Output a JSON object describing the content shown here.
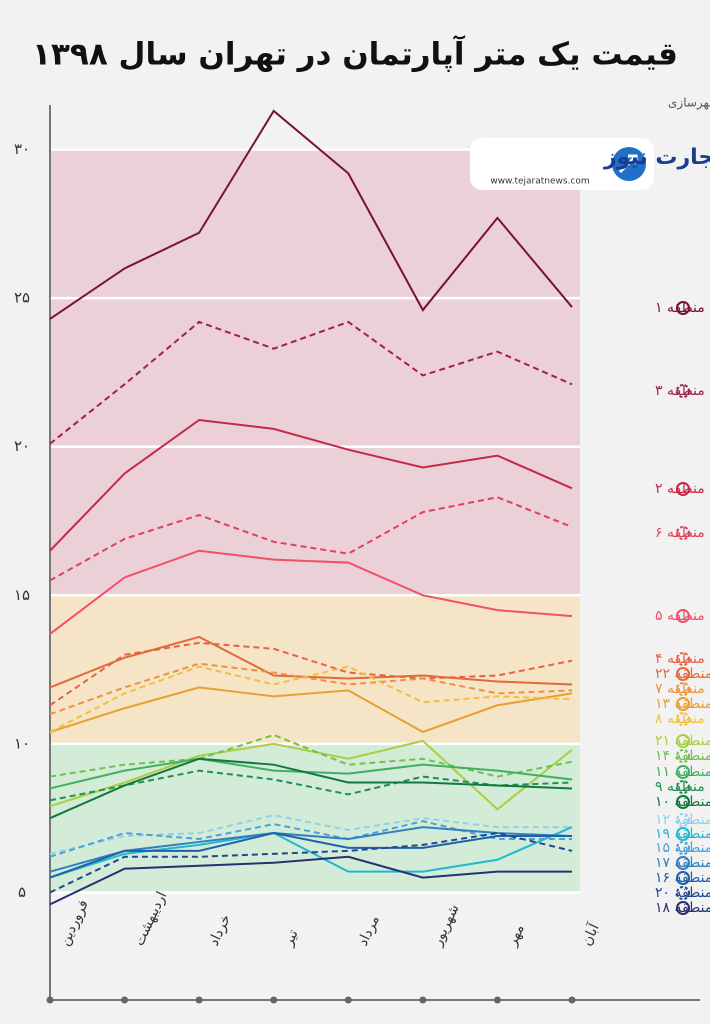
{
  "chart_data": {
    "type": "line",
    "title": "قیمت یک متر آپارتمان در تهران سال ۱۳۹۸",
    "subtitle": "منبع : وزارت راه و شهرسازی",
    "logo": {
      "name": "تجارت نیوز",
      "url": "www.tejaratnews.com"
    },
    "categories": [
      "فروردین",
      "اردیبهشت",
      "خرداد",
      "تیر",
      "مرداد",
      "شهریور",
      "مهر",
      "آبان"
    ],
    "ylim": [
      3.4,
      31.5
    ],
    "yticks": [
      {
        "value": 5,
        "label": "۵"
      },
      {
        "value": 10,
        "label": "۱۰"
      },
      {
        "value": 15,
        "label": "۱۵"
      },
      {
        "value": 20,
        "label": "۲۰"
      },
      {
        "value": 25,
        "label": "۲۵"
      },
      {
        "value": 30,
        "label": "۳۰"
      }
    ],
    "grid": true,
    "bands": [
      {
        "from": 15,
        "to": 30,
        "color": "#ecd0d8"
      },
      {
        "from": 10,
        "to": 15,
        "color": "#f5e5c6"
      },
      {
        "from": 5,
        "to": 10,
        "color": "#d3ecd8"
      }
    ],
    "series": [
      {
        "name": "منطقه ۱",
        "color": "#7a1038",
        "dashed": false,
        "values": [
          24.3,
          26.0,
          27.2,
          31.3,
          29.2,
          24.6,
          27.7,
          24.7
        ]
      },
      {
        "name": "منطقه ۳",
        "color": "#a0204f",
        "dashed": true,
        "values": [
          20.1,
          22.1,
          24.2,
          23.3,
          24.2,
          22.4,
          23.2,
          22.1
        ]
      },
      {
        "name": "منطقه ۲",
        "color": "#c62849",
        "dashed": false,
        "values": [
          16.5,
          19.1,
          20.9,
          20.6,
          19.9,
          19.3,
          19.7,
          18.6
        ]
      },
      {
        "name": "منطقه ۶",
        "color": "#e0405a",
        "dashed": true,
        "values": [
          15.5,
          16.9,
          17.7,
          16.8,
          16.4,
          17.8,
          18.3,
          17.3
        ]
      },
      {
        "name": "منطقه ۵",
        "color": "#f0506a",
        "dashed": false,
        "values": [
          13.7,
          15.6,
          16.5,
          16.2,
          16.1,
          15.0,
          14.5,
          14.3
        ]
      },
      {
        "name": "منطقه ۴",
        "color": "#e8604a",
        "dashed": true,
        "values": [
          11.3,
          13.0,
          13.4,
          13.2,
          12.4,
          12.2,
          12.3,
          12.8
        ]
      },
      {
        "name": "منطقه ۲۲",
        "color": "#e06a3a",
        "dashed": false,
        "values": [
          11.9,
          12.9,
          13.6,
          12.3,
          12.2,
          12.3,
          12.1,
          12.0
        ]
      },
      {
        "name": "منطقه ۷",
        "color": "#f09040",
        "dashed": true,
        "values": [
          11.0,
          11.9,
          12.7,
          12.4,
          12.0,
          12.2,
          11.7,
          11.8
        ]
      },
      {
        "name": "منطقه ۱۳",
        "color": "#e8a030",
        "dashed": false,
        "values": [
          10.4,
          11.2,
          11.9,
          11.6,
          11.8,
          10.4,
          11.3,
          11.7
        ]
      },
      {
        "name": "منطقه ۸",
        "color": "#f0c040",
        "dashed": true,
        "values": [
          10.4,
          11.7,
          12.6,
          12.0,
          12.6,
          11.4,
          11.6,
          11.5
        ]
      },
      {
        "name": "منطقه ۲۱",
        "color": "#a8d040",
        "dashed": false,
        "values": [
          7.9,
          8.7,
          9.6,
          10.0,
          9.5,
          10.1,
          7.8,
          9.8
        ]
      },
      {
        "name": "منطقه ۱۴",
        "color": "#70c050",
        "dashed": true,
        "values": [
          8.9,
          9.3,
          9.5,
          10.3,
          9.3,
          9.5,
          8.9,
          9.4
        ]
      },
      {
        "name": "منطقه ۱۱",
        "color": "#40b060",
        "dashed": false,
        "values": [
          8.5,
          9.1,
          9.5,
          9.1,
          9.0,
          9.3,
          9.1,
          8.8
        ]
      },
      {
        "name": "منطقه ۹",
        "color": "#209050",
        "dashed": true,
        "values": [
          8.1,
          8.6,
          9.1,
          8.8,
          8.3,
          8.9,
          8.6,
          8.7
        ]
      },
      {
        "name": "منطقه ۱۰",
        "color": "#107840",
        "dashed": false,
        "values": [
          7.5,
          8.6,
          9.5,
          9.3,
          8.7,
          8.7,
          8.6,
          8.5
        ]
      },
      {
        "name": "منطقه ۱۲",
        "color": "#90d0e8",
        "dashed": true,
        "values": [
          6.3,
          6.9,
          7.0,
          7.6,
          7.1,
          7.5,
          7.2,
          7.2
        ]
      },
      {
        "name": "منطقه ۱۹",
        "color": "#20b8d0",
        "dashed": false,
        "values": [
          5.5,
          6.3,
          6.6,
          7.0,
          5.7,
          5.7,
          6.1,
          7.2
        ]
      },
      {
        "name": "منطقه ۱۵",
        "color": "#50a0d8",
        "dashed": true,
        "values": [
          6.2,
          7.0,
          6.8,
          7.3,
          6.8,
          7.4,
          6.8,
          6.8
        ]
      },
      {
        "name": "منطقه ۱۷",
        "color": "#3080c0",
        "dashed": false,
        "values": [
          5.7,
          6.4,
          6.7,
          7.0,
          6.8,
          7.2,
          7.0,
          6.9
        ]
      },
      {
        "name": "منطقه ۱۶",
        "color": "#2060a8",
        "dashed": false,
        "values": [
          5.5,
          6.4,
          6.4,
          7.0,
          6.5,
          6.5,
          6.9,
          6.9
        ]
      },
      {
        "name": "منطقه ۲۰",
        "color": "#204890",
        "dashed": true,
        "values": [
          5.0,
          6.2,
          6.2,
          6.3,
          6.4,
          6.6,
          7.0,
          6.4
        ]
      },
      {
        "name": "منطقه ۱۸",
        "color": "#283070",
        "dashed": false,
        "values": [
          4.6,
          5.8,
          5.9,
          6.0,
          6.2,
          5.5,
          5.7,
          5.7
        ]
      }
    ]
  }
}
